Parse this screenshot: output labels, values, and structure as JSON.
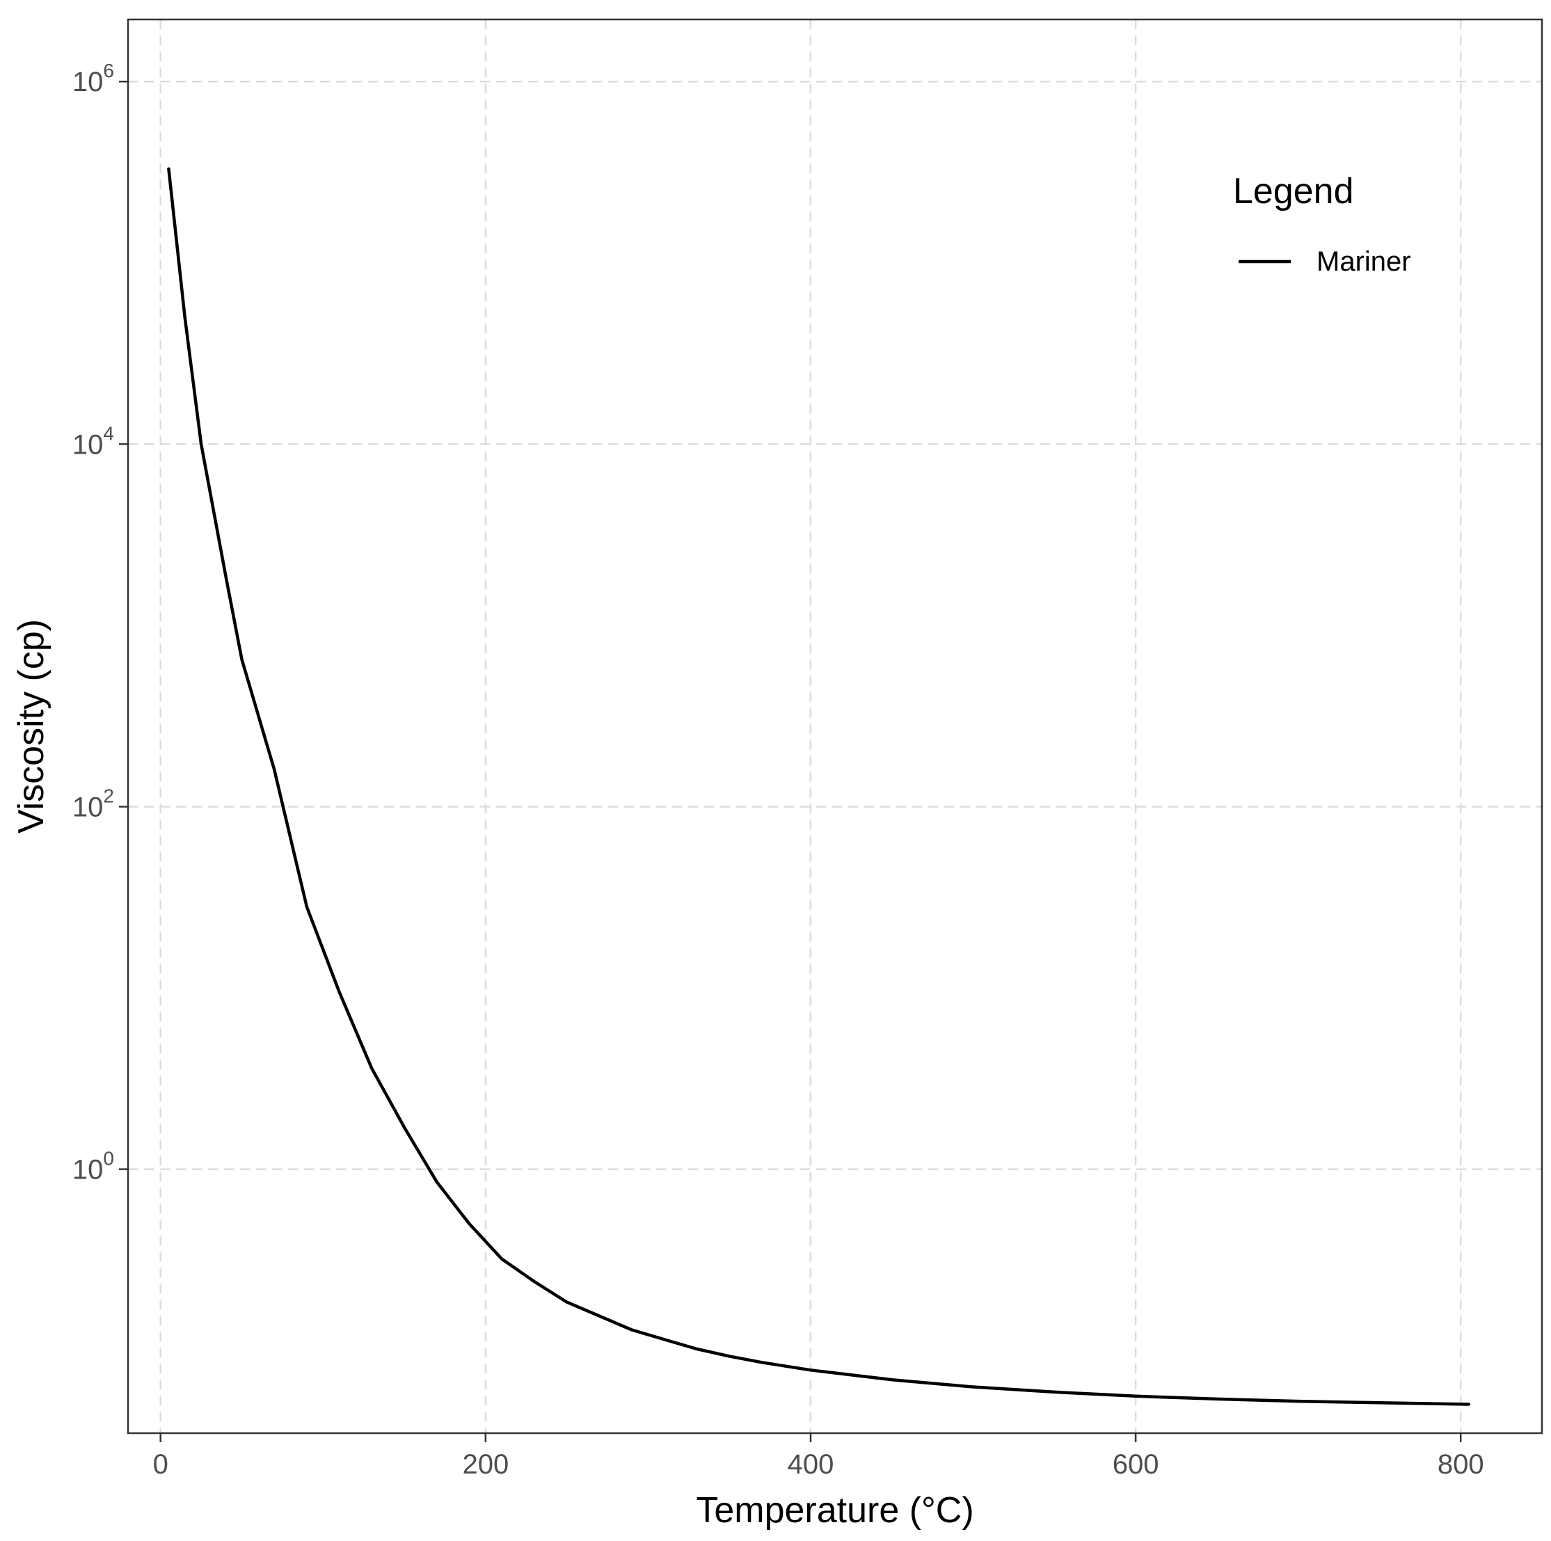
{
  "chart_data": {
    "type": "line",
    "title": "",
    "xlabel": "Temperature (°C)",
    "ylabel": "Viscosity (cp)",
    "x_scale": "linear",
    "y_scale": "log10",
    "xlim": [
      -20,
      850
    ],
    "ylim": [
      0.035,
      2200000
    ],
    "x_ticks": [
      {
        "value": 0,
        "label": "0"
      },
      {
        "value": 200,
        "label": "200"
      },
      {
        "value": 400,
        "label": "400"
      },
      {
        "value": 600,
        "label": "600"
      },
      {
        "value": 800,
        "label": "800"
      }
    ],
    "y_ticks": [
      {
        "value": 1,
        "base": "10",
        "exp": "0"
      },
      {
        "value": 100,
        "base": "10",
        "exp": "2"
      },
      {
        "value": 10000,
        "base": "10",
        "exp": "4"
      },
      {
        "value": 1000000,
        "base": "10",
        "exp": "6"
      }
    ],
    "grid": true,
    "grid_style": "dashed",
    "legend": {
      "title": "Legend",
      "position": "top-right"
    },
    "series": [
      {
        "name": "Mariner",
        "color": "#000000",
        "x": [
          5,
          15,
          25,
          40,
          50,
          70,
          90,
          110,
          130,
          150,
          170,
          190,
          210,
          230,
          250,
          270,
          290,
          310,
          330,
          350,
          370,
          400,
          450,
          500,
          550,
          600,
          650,
          700,
          750,
          805
        ],
        "y": [
          330000,
          50000,
          10000,
          1900,
          650,
          160,
          28,
          9.5,
          3.6,
          1.7,
          0.85,
          0.5,
          0.32,
          0.24,
          0.185,
          0.155,
          0.13,
          0.115,
          0.102,
          0.093,
          0.086,
          0.078,
          0.069,
          0.063,
          0.059,
          0.056,
          0.054,
          0.0525,
          0.0515,
          0.0505
        ]
      }
    ]
  }
}
